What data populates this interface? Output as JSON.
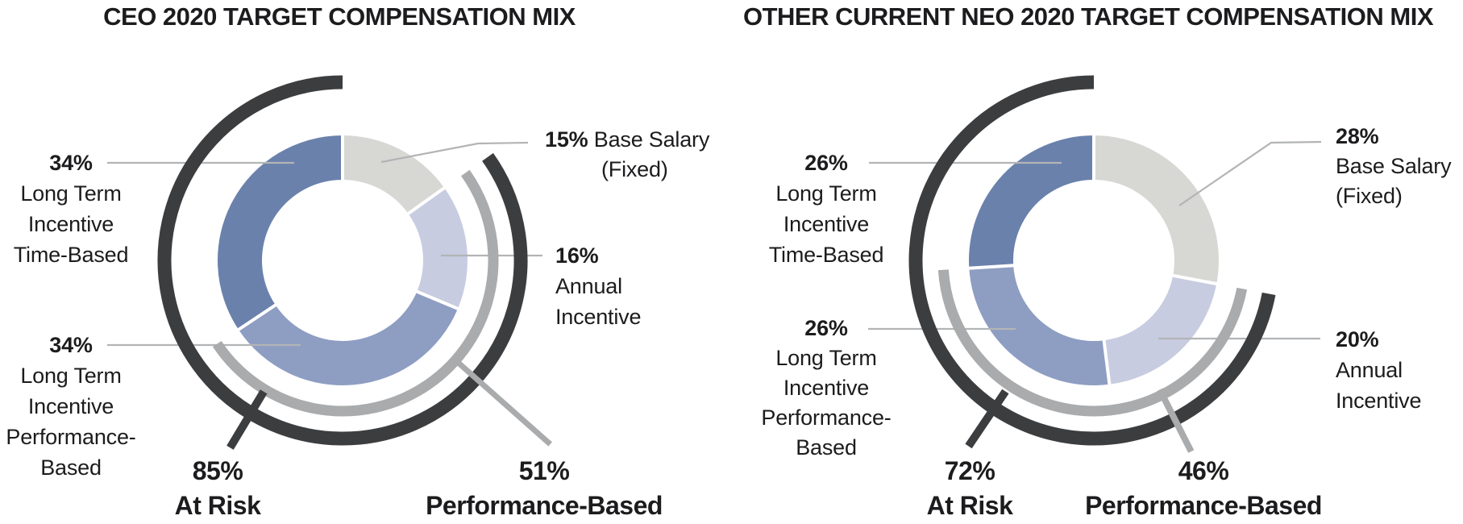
{
  "colors": {
    "segment_base_salary": "#d7d8d4",
    "segment_annual_incentive": "#c8cce0",
    "segment_lti_performance_based": "#8e9dc2",
    "segment_lti_time_based": "#6a81ac",
    "at_risk_arc": "#3c3d3f",
    "performance_arc": "#a9abad",
    "leader_line": "#b2b4b6",
    "text": "#1c1c1e",
    "background": "#ffffff"
  },
  "chart_data": [
    {
      "type": "donut",
      "id": "ceo",
      "title": "CEO 2020 TARGET COMPENSATION MIX",
      "segments": [
        {
          "name": "base-salary",
          "pct": "15%",
          "value": 15,
          "lines": [
            "Base Salary",
            "(Fixed)"
          ]
        },
        {
          "name": "annual-incentive",
          "pct": "16%",
          "value": 16,
          "lines": [
            "Annual",
            "Incentive"
          ]
        },
        {
          "name": "lti-performance-based",
          "pct": "34%",
          "value": 34,
          "lines": [
            "Long Term",
            "Incentive",
            "Performance-",
            "Based"
          ]
        },
        {
          "name": "lti-time-based",
          "pct": "34%",
          "value": 34,
          "lines": [
            "Long Term",
            "Incentive",
            "Time-Based"
          ]
        }
      ],
      "at_risk": {
        "pct": "85%",
        "value": 85,
        "label": "At Risk"
      },
      "performance_based": {
        "pct": "51%",
        "value": 51,
        "label": "Performance-Based"
      },
      "legend_position": "none",
      "start_angle_deg": 0,
      "direction": "clockwise"
    },
    {
      "type": "donut",
      "id": "neo",
      "title": "OTHER CURRENT NEO 2020 TARGET COMPENSATION MIX",
      "segments": [
        {
          "name": "base-salary",
          "pct": "28%",
          "value": 28,
          "lines": [
            "Base Salary",
            "(Fixed)"
          ]
        },
        {
          "name": "annual-incentive",
          "pct": "20%",
          "value": 20,
          "lines": [
            "Annual",
            "Incentive"
          ]
        },
        {
          "name": "lti-performance-based",
          "pct": "26%",
          "value": 26,
          "lines": [
            "Long Term",
            "Incentive",
            "Performance-",
            "Based"
          ]
        },
        {
          "name": "lti-time-based",
          "pct": "26%",
          "value": 26,
          "lines": [
            "Long Term",
            "Incentive",
            "Time-Based"
          ]
        }
      ],
      "at_risk": {
        "pct": "72%",
        "value": 72,
        "label": "At Risk"
      },
      "performance_based": {
        "pct": "46%",
        "value": 46,
        "label": "Performance-Based"
      },
      "legend_position": "none",
      "start_angle_deg": 0,
      "direction": "clockwise"
    }
  ]
}
